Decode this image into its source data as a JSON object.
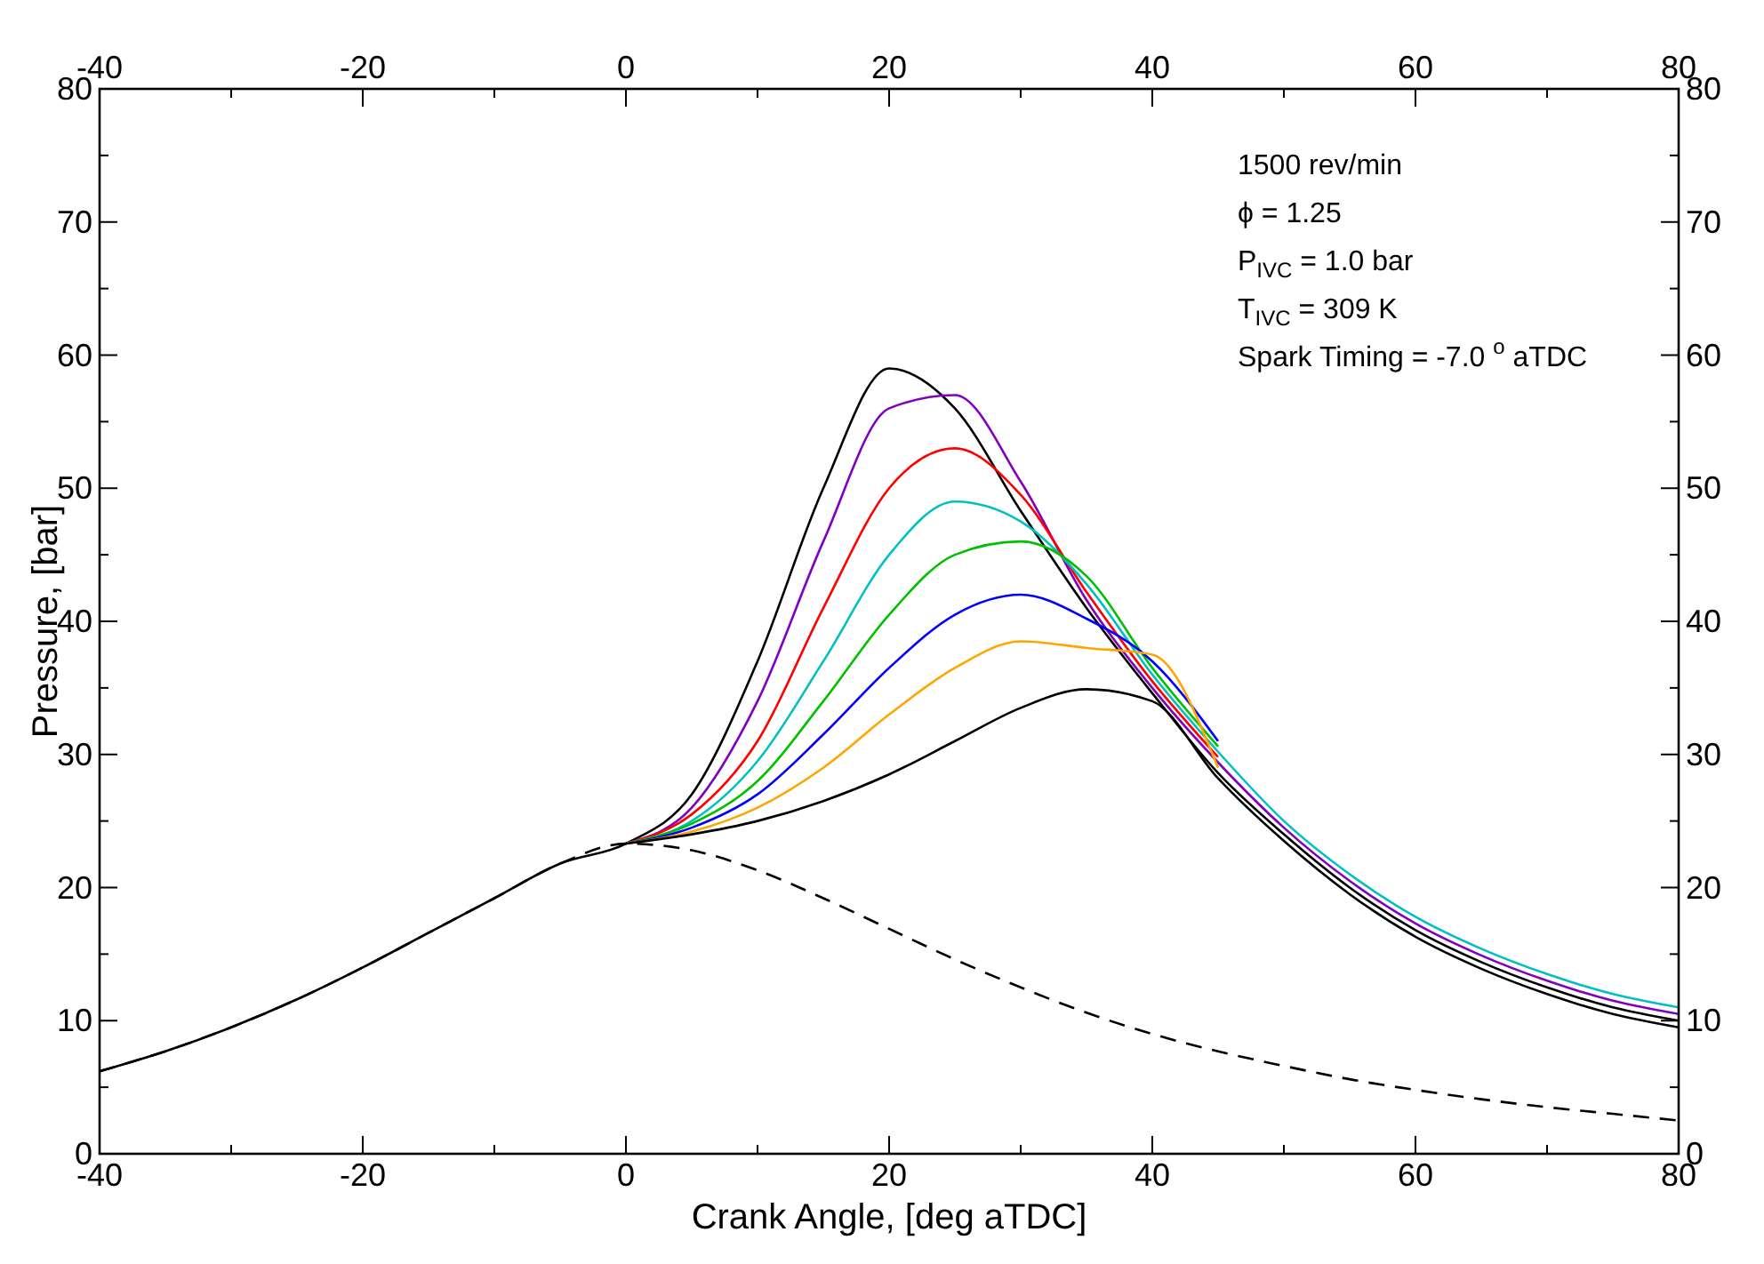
{
  "chart_data": {
    "type": "line",
    "xlabel": "Crank Angle, [deg aTDC]",
    "ylabel": "Pressure, [bar]",
    "x": [
      -40,
      -35,
      -30,
      -25,
      -20,
      -15,
      -10,
      -5,
      0,
      5,
      10,
      15,
      20,
      25,
      30,
      35,
      40,
      45,
      50,
      55,
      60,
      65,
      70,
      75,
      80
    ],
    "series": [
      {
        "color": "#000000",
        "values": [
          6.2,
          7.7,
          9.5,
          11.6,
          14.0,
          16.6,
          19.2,
          21.8,
          23.3,
          27,
          37,
          50,
          59,
          56,
          48.3,
          41.0,
          34.6,
          28.6,
          24,
          20,
          16.8,
          14.4,
          12.5,
          11,
          10
        ]
      },
      {
        "color": "#8000c0",
        "values": [
          null,
          null,
          null,
          null,
          null,
          null,
          null,
          null,
          23.3,
          26,
          34,
          46,
          56,
          57,
          50.5,
          41.6,
          35.0,
          29.4,
          24.5,
          20.5,
          17.3,
          14.9,
          13.0,
          11.5,
          10.5
        ]
      },
      {
        "color": "#ff0000",
        "values": [
          null,
          null,
          null,
          null,
          null,
          null,
          null,
          null,
          23.3,
          25.5,
          31,
          41,
          50,
          53,
          49.5,
          42.2,
          35.5,
          29.8,
          null,
          null,
          null,
          null,
          null,
          null,
          null
        ]
      },
      {
        "color": "#00c0c0",
        "values": [
          null,
          null,
          null,
          null,
          null,
          null,
          null,
          null,
          23.3,
          25,
          29.5,
          37,
          45,
          49,
          47.5,
          42.8,
          36.0,
          30.2,
          25,
          21,
          17.8,
          15.4,
          13.5,
          12,
          11
        ]
      },
      {
        "color": "#00c000",
        "values": [
          null,
          null,
          null,
          null,
          null,
          null,
          null,
          null,
          23.3,
          24.8,
          28,
          34,
          40.5,
          45,
          46,
          43.4,
          36.5,
          30.6,
          null,
          null,
          null,
          null,
          null,
          null,
          null
        ]
      },
      {
        "color": "#0000ff",
        "values": [
          null,
          null,
          null,
          null,
          null,
          null,
          null,
          null,
          23.3,
          24.5,
          27,
          31.5,
          36.5,
          40.5,
          42,
          40.2,
          37.0,
          31.0,
          null,
          null,
          null,
          null,
          null,
          null,
          null
        ]
      },
      {
        "color": "#ffa500",
        "values": [
          null,
          null,
          null,
          null,
          null,
          null,
          null,
          null,
          23.3,
          24.2,
          26,
          29,
          33,
          36.5,
          38.5,
          38,
          37.5,
          29.0,
          null,
          null,
          null,
          null,
          null,
          null,
          null
        ]
      },
      {
        "color": "#000000",
        "values": [
          null,
          null,
          null,
          null,
          null,
          null,
          null,
          null,
          23.3,
          24,
          25,
          26.5,
          28.5,
          31,
          33.5,
          34.9,
          34.0,
          28.2,
          23.5,
          19.5,
          16.3,
          13.9,
          12,
          10.5,
          9.5
        ]
      },
      {
        "color": "#000000",
        "line_style": "dashed",
        "values": [
          6.2,
          7.7,
          9.5,
          11.6,
          14.0,
          16.6,
          19.2,
          21.8,
          23.3,
          22.8,
          21.3,
          19.2,
          16.9,
          14.6,
          12.5,
          10.6,
          9.0,
          7.7,
          6.6,
          5.6,
          4.8,
          4.1,
          3.5,
          3.0,
          2.5
        ]
      }
    ],
    "xlim": [
      -40,
      80
    ],
    "xticks": [
      -40,
      {
        "value": -30,
        "label": null
      },
      -20,
      {
        "value": -10,
        "label": null
      },
      0,
      {
        "value": 10,
        "label": null
      },
      20,
      {
        "value": 30,
        "label": null
      },
      40,
      {
        "value": 50,
        "label": null
      },
      60,
      {
        "value": 70,
        "label": null
      },
      80
    ],
    "x2lim": [
      -40,
      80
    ],
    "x2ticks": [
      -40,
      {
        "value": -30,
        "label": null
      },
      -20,
      {
        "value": -10,
        "label": null
      },
      0,
      {
        "value": 10,
        "label": null
      },
      20,
      {
        "value": 30,
        "label": null
      },
      40,
      {
        "value": 50,
        "label": null
      },
      60,
      {
        "value": 70,
        "label": null
      },
      80
    ],
    "ylim": [
      0,
      80
    ],
    "yticks": [
      0,
      {
        "value": 5,
        "label": null
      },
      10,
      {
        "value": 15,
        "label": null
      },
      20,
      {
        "value": 25,
        "label": null
      },
      30,
      {
        "value": 35,
        "label": null
      },
      40,
      {
        "value": 45,
        "label": null
      },
      50,
      {
        "value": 55,
        "label": null
      },
      60,
      {
        "value": 65,
        "label": null
      },
      70,
      {
        "value": 75,
        "label": null
      },
      80
    ],
    "y2lim": [
      0,
      80
    ],
    "y2ticks": [
      0,
      {
        "value": 5,
        "label": null
      },
      10,
      {
        "value": 15,
        "label": null
      },
      20,
      {
        "value": 25,
        "label": null
      },
      30,
      {
        "value": 35,
        "label": null
      },
      40,
      {
        "value": 45,
        "label": null
      },
      50,
      {
        "value": 55,
        "label": null
      },
      60,
      {
        "value": 65,
        "label": null
      },
      70,
      {
        "value": 75,
        "label": null
      },
      80
    ],
    "grid": false,
    "marker": "none",
    "line_style": "solid",
    "annotations": [
      "1500 rev/min",
      "ϕ = 1.25",
      "P$_{IVC}$ = 1.0 bar",
      "T$_{IVC}$ = 309 K",
      "Spark Timing = -7.0 $^{o}$ aTDC"
    ]
  }
}
